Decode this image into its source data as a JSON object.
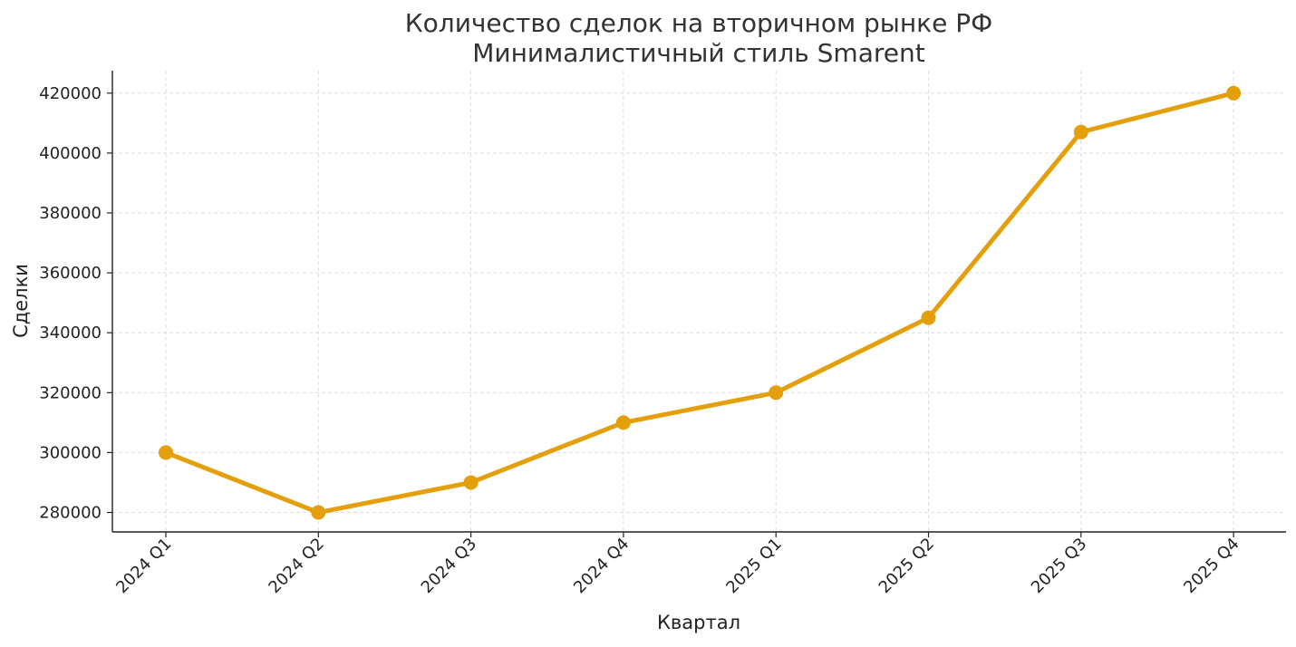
{
  "chart_data": {
    "type": "line",
    "title": [
      "Количество сделок на вторичном рынке РФ",
      "Минималистичный стиль Smarent"
    ],
    "xlabel": "Квартал",
    "ylabel": "Сделки",
    "categories": [
      "2024 Q1",
      "2024 Q2",
      "2024 Q3",
      "2024 Q4",
      "2025 Q1",
      "2025 Q2",
      "2025 Q3",
      "2025 Q4"
    ],
    "series": [
      {
        "values": [
          300000,
          280000,
          290000,
          310000,
          320000,
          345000,
          407000,
          420000
        ],
        "color": "#E49F0C"
      }
    ],
    "yticks": [
      280000,
      300000,
      320000,
      340000,
      360000,
      380000,
      400000,
      420000
    ],
    "ylim": [
      273500,
      427500
    ],
    "grid": true,
    "grid_style": "dashed",
    "legend": "none",
    "axis_color": "#222222",
    "grid_color": "#DDDDDD",
    "text_color": "#333333"
  }
}
